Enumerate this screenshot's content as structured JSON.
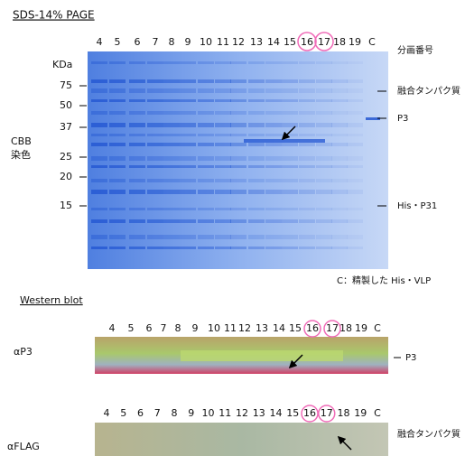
{
  "header": {
    "title": "SDS-14% PAGE"
  },
  "sds_page": {
    "lanes": [
      "4",
      "5",
      "6",
      "7",
      "8",
      "9",
      "10",
      "11",
      "12",
      "13",
      "14",
      "15",
      "16",
      "17",
      "18",
      "19",
      "C"
    ],
    "lane_axis_label": "分画番号",
    "marker_unit": "KDa",
    "markers": [
      "75",
      "50",
      "37",
      "25",
      "20",
      "15"
    ],
    "stain_label": [
      "CBB",
      "染色"
    ],
    "band_labels": [
      "融合タンパク質",
      "P3",
      "His・P31"
    ],
    "caption": "C：精製した His・VLP"
  },
  "western_blot": {
    "title": "Western blot",
    "panels": [
      {
        "antibody": "αP3",
        "lanes": [
          "4",
          "5",
          "6",
          "7",
          "8",
          "9",
          "10",
          "11",
          "12",
          "13",
          "14",
          "15",
          "16",
          "17",
          "18",
          "19",
          "C"
        ],
        "band_label": "P3"
      },
      {
        "antibody": "αFLAG",
        "lanes": [
          "4",
          "5",
          "6",
          "7",
          "8",
          "9",
          "10",
          "11",
          "12",
          "13",
          "14",
          "15",
          "16",
          "17",
          "18",
          "19",
          "C"
        ],
        "band_label": "融合タンパク質"
      }
    ]
  }
}
